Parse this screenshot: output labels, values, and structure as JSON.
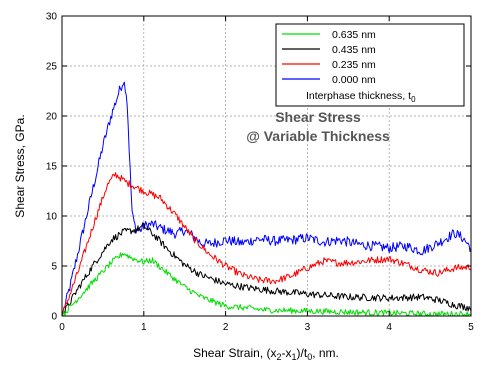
{
  "chart_data": {
    "type": "line",
    "ylabel": "Shear Stress, GPa.",
    "xlabel": {
      "pre": "Shear Strain, (x",
      "sub1": "2",
      "mid": "-x",
      "sub2": "1",
      "post": ")/t",
      "sub3": "0",
      "end": ", nm."
    },
    "xlim": [
      0,
      5
    ],
    "ylim": [
      0,
      30
    ],
    "x_ticks": [
      0,
      1,
      2,
      3,
      4,
      5
    ],
    "y_ticks": [
      0,
      5,
      10,
      15,
      20,
      25,
      30
    ],
    "grid": true,
    "legend_position": "top-right",
    "legend_title": {
      "text": "Interphase thickness, t",
      "sub": "0"
    },
    "annotation": [
      "Shear Stress",
      "@ Variable Thickness"
    ],
    "series": [
      {
        "name": "0.635 nm",
        "color": "#00dd00",
        "noise": 0.3,
        "x": [
          0,
          0.2,
          0.4,
          0.6,
          0.75,
          0.85,
          1.0,
          1.1,
          1.3,
          1.5,
          1.7,
          2.0,
          2.5,
          3.0,
          3.5,
          4.0,
          4.5,
          5.0
        ],
        "y": [
          0,
          1.8,
          3.6,
          5.3,
          6.3,
          5.8,
          5.4,
          5.6,
          4.2,
          2.9,
          1.9,
          1.0,
          0.6,
          0.5,
          0.4,
          0.3,
          0.2,
          0.2
        ]
      },
      {
        "name": "0.435 nm",
        "color": "#000000",
        "noise": 0.35,
        "x": [
          0,
          0.2,
          0.4,
          0.6,
          0.75,
          0.9,
          1.0,
          1.15,
          1.3,
          1.5,
          1.7,
          2.0,
          2.3,
          2.6,
          3.0,
          3.5,
          4.0,
          4.4,
          4.6,
          4.8,
          5.0
        ],
        "y": [
          0,
          2.8,
          5.3,
          7.6,
          8.4,
          8.6,
          9.0,
          7.9,
          6.6,
          5.1,
          4.1,
          3.2,
          2.8,
          2.5,
          2.2,
          1.9,
          1.8,
          1.9,
          1.6,
          1.1,
          0.8
        ]
      },
      {
        "name": "0.235 nm",
        "color": "#ff0000",
        "noise": 0.35,
        "x": [
          0,
          0.2,
          0.4,
          0.55,
          0.65,
          0.8,
          1.0,
          1.2,
          1.4,
          1.6,
          1.8,
          2.0,
          2.2,
          2.4,
          2.6,
          2.8,
          3.0,
          3.2,
          3.4,
          3.6,
          3.8,
          4.0,
          4.2,
          4.4,
          4.6,
          4.8,
          5.0
        ],
        "y": [
          0,
          4.5,
          9.5,
          13.0,
          14.2,
          13.3,
          12.5,
          11.8,
          10.0,
          7.8,
          6.2,
          5.0,
          4.1,
          3.6,
          3.5,
          4.0,
          4.8,
          5.5,
          5.3,
          5.4,
          5.6,
          5.7,
          5.2,
          4.6,
          4.3,
          4.8,
          4.9
        ]
      },
      {
        "name": "0.000 nm",
        "color": "#0000ff",
        "noise": 0.5,
        "x": [
          0,
          0.1,
          0.2,
          0.3,
          0.4,
          0.5,
          0.6,
          0.7,
          0.75,
          0.78,
          0.8,
          0.83,
          0.86,
          0.9,
          0.95,
          1.0,
          1.1,
          1.2,
          1.3,
          1.4,
          1.5,
          1.6,
          1.7,
          1.8,
          2.0,
          2.2,
          2.4,
          2.6,
          2.8,
          3.0,
          3.2,
          3.4,
          3.6,
          3.8,
          4.0,
          4.2,
          4.4,
          4.6,
          4.8,
          4.9,
          5.0
        ],
        "y": [
          0,
          3.0,
          6.5,
          10.0,
          13.5,
          17.0,
          20.0,
          22.5,
          23.5,
          22.8,
          21.0,
          15.0,
          10.0,
          8.8,
          8.5,
          9.0,
          9.2,
          8.8,
          8.5,
          8.2,
          8.6,
          8.0,
          7.3,
          7.2,
          7.6,
          7.3,
          7.7,
          7.5,
          7.6,
          7.8,
          7.4,
          7.6,
          7.2,
          7.0,
          6.8,
          7.0,
          6.5,
          7.3,
          8.3,
          7.8,
          6.8
        ]
      }
    ]
  }
}
